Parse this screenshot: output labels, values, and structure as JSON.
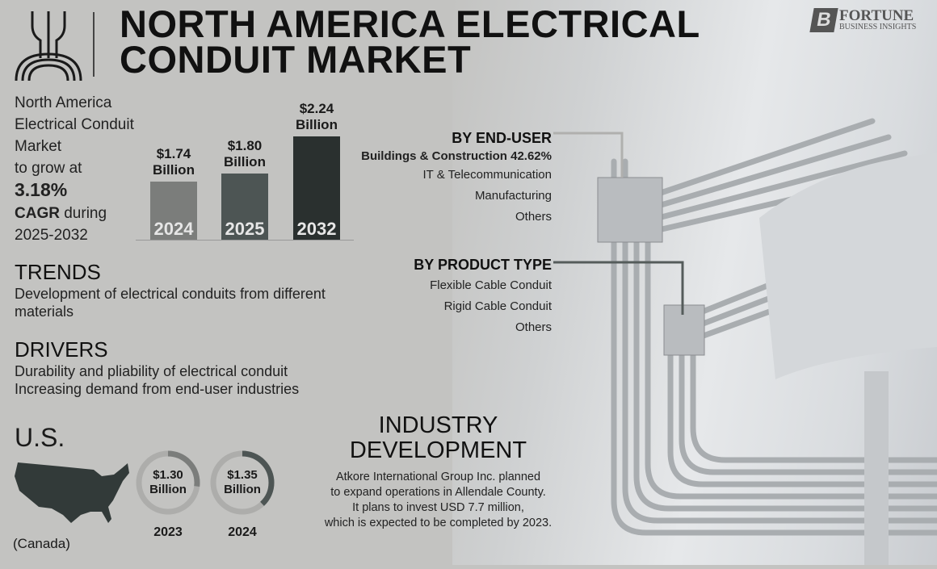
{
  "header": {
    "title_line1": "NORTH AMERICA ELECTRICAL",
    "title_line2": "CONDUIT MARKET"
  },
  "brand": {
    "logo_letter": "B",
    "name": "FORTUNE",
    "tagline": "BUSINESS INSIGHTS"
  },
  "intro": {
    "line1": "North America",
    "line2": "Electrical Conduit",
    "line3": "Market",
    "line4": "to grow at",
    "cagr": "3.18%",
    "cagr_label": "CAGR",
    "during": " during",
    "period": "2025-2032"
  },
  "chart_data": {
    "type": "bar",
    "categories": [
      "2024",
      "2025",
      "2032"
    ],
    "values": [
      1.74,
      1.8,
      2.24
    ],
    "data_labels": [
      {
        "value": "$1.74",
        "unit": "Billion"
      },
      {
        "value": "$1.80",
        "unit": "Billion"
      },
      {
        "value": "$2.24",
        "unit": "Billion"
      }
    ],
    "colors": [
      "#7b7d7b",
      "#4d5554",
      "#2a302f"
    ],
    "title": "",
    "xlabel": "",
    "ylabel": ""
  },
  "trends": {
    "title": "TRENDS",
    "text": "Development of electrical conduits from different materials"
  },
  "drivers": {
    "title": "DRIVERS",
    "items": [
      "Durability and pliability of electrical conduit",
      "Increasing demand from end-user industries"
    ]
  },
  "us": {
    "title": "U.S.",
    "note": "(Canada)",
    "donuts": [
      {
        "value": "$1.30",
        "unit": "Billion",
        "year": "2023",
        "fill": 0.27
      },
      {
        "value": "$1.35",
        "unit": "Billion",
        "year": "2024",
        "fill": 0.38
      }
    ]
  },
  "end_user": {
    "title": "BY END-USER",
    "items": [
      "Buildings & Construction 42.62%",
      "IT & Telecommunication",
      "Manufacturing",
      "Others"
    ]
  },
  "product_type": {
    "title": "BY PRODUCT TYPE",
    "items": [
      "Flexible Cable Conduit",
      "Rigid Cable Conduit",
      "Others"
    ]
  },
  "industry": {
    "title_line1": "INDUSTRY",
    "title_line2": "DEVELOPMENT",
    "lines": [
      "Atkore International Group Inc. planned",
      "to expand operations in Allendale County.",
      "It plans to invest USD 7.7 million,",
      "which is expected to be completed by 2023."
    ]
  }
}
